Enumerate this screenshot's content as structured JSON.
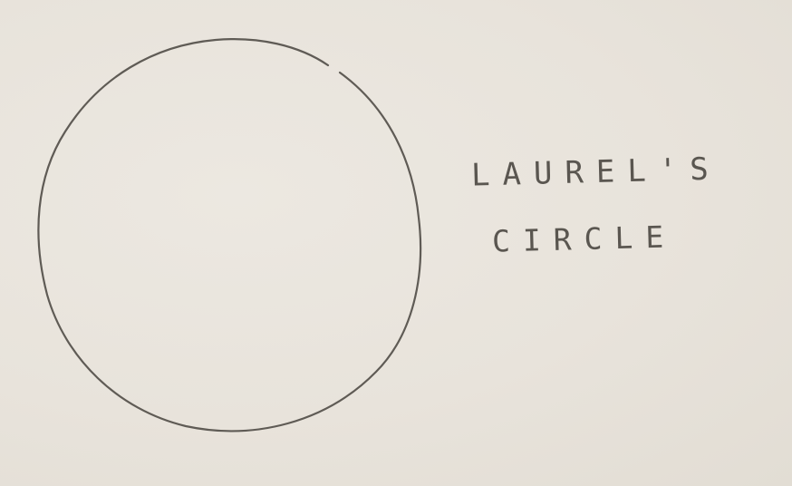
{
  "caption": {
    "line1": "LAUREL'S",
    "line2": "CIRCLE"
  },
  "colors": {
    "paper": "#e9e4dc",
    "pencil": "#5a5650"
  },
  "shapes": [
    "hand-drawn-circle"
  ]
}
